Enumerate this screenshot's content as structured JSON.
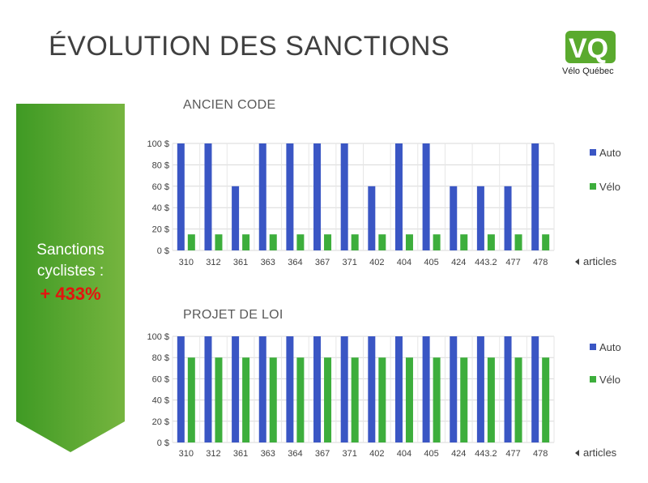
{
  "title": "ÉVOLUTION DES SANCTIONS",
  "logo": {
    "letters": "VQ",
    "text": "Vélo Québec",
    "color": "#5aaa2e"
  },
  "arrow": {
    "line1": "Sanctions",
    "line2": "cyclistes :",
    "highlight": "+ 433%",
    "color_top": "#3f9a24",
    "color_bottom": "#76b53f",
    "highlight_color": "#e3140f"
  },
  "chart_data": [
    {
      "type": "bar",
      "title": "ANCIEN CODE",
      "categories": [
        "310",
        "312",
        "361",
        "363",
        "364",
        "367",
        "371",
        "402",
        "404",
        "405",
        "424",
        "443.2",
        "477",
        "478"
      ],
      "series": [
        {
          "name": "Auto",
          "color": "#3a56c4",
          "values": [
            100,
            100,
            60,
            100,
            100,
            100,
            100,
            60,
            100,
            100,
            60,
            60,
            60,
            100
          ]
        },
        {
          "name": "Vélo",
          "color": "#3dae3c",
          "values": [
            15,
            15,
            15,
            15,
            15,
            15,
            15,
            15,
            15,
            15,
            15,
            15,
            15,
            15
          ]
        }
      ],
      "yticks": [
        "0 $",
        "20 $",
        "40 $",
        "60 $",
        "80 $",
        "100 $"
      ],
      "ylim": [
        0,
        100
      ],
      "xlabel": "articles",
      "legend": "right",
      "grid": true
    },
    {
      "type": "bar",
      "title": "PROJET DE LOI",
      "categories": [
        "310",
        "312",
        "361",
        "363",
        "364",
        "367",
        "371",
        "402",
        "404",
        "405",
        "424",
        "443.2",
        "477",
        "478"
      ],
      "series": [
        {
          "name": "Auto",
          "color": "#3a56c4",
          "values": [
            100,
            100,
            100,
            100,
            100,
            100,
            100,
            100,
            100,
            100,
            100,
            100,
            100,
            100
          ]
        },
        {
          "name": "Vélo",
          "color": "#3dae3c",
          "values": [
            80,
            80,
            80,
            80,
            80,
            80,
            80,
            80,
            80,
            80,
            80,
            80,
            80,
            80
          ]
        }
      ],
      "yticks": [
        "0 $",
        "20 $",
        "40 $",
        "60 $",
        "80 $",
        "100 $"
      ],
      "ylim": [
        0,
        100
      ],
      "xlabel": "articles",
      "legend": "right",
      "grid": true
    }
  ]
}
